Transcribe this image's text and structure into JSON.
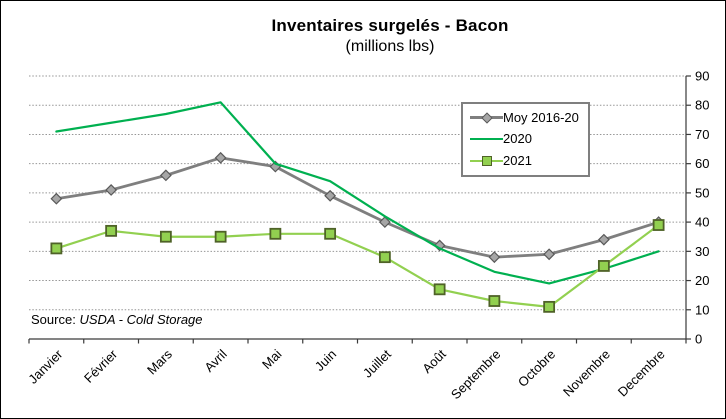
{
  "chart": {
    "title": "Inventaires surgelés - Bacon",
    "subtitle": "(millions lbs)",
    "source_label": "Source:",
    "source_value": "USDA - Cold Storage"
  },
  "chart_data": {
    "type": "line",
    "title": "Inventaires surgelés - Bacon",
    "subtitle": "(millions lbs)",
    "categories": [
      "Janvier",
      "Février",
      "Mars",
      "Avril",
      "Mai",
      "Juin",
      "Juillet",
      "Août",
      "Septembre",
      "Octobre",
      "Novembre",
      "Decembre"
    ],
    "series": [
      {
        "name": "Moy 2016-20",
        "color": "#7F7F7F",
        "stroke_width": 2.8,
        "marker": "diamond",
        "marker_fill": "#A6A6A6",
        "marker_stroke": "#595959",
        "values": [
          48,
          51,
          56,
          62,
          59,
          49,
          40,
          32,
          28,
          29,
          34,
          40
        ]
      },
      {
        "name": "2020",
        "color": "#00B050",
        "stroke_width": 2.2,
        "marker": "none",
        "marker_fill": "",
        "marker_stroke": "",
        "values": [
          71,
          74,
          77,
          81,
          60,
          54,
          42,
          31,
          23,
          19,
          24,
          30
        ]
      },
      {
        "name": "2021",
        "color": "#92D050",
        "stroke_width": 2.2,
        "marker": "square",
        "marker_fill": "#92D050",
        "marker_stroke": "#4F6228",
        "values": [
          31,
          37,
          35,
          35,
          36,
          36,
          28,
          17,
          13,
          11,
          25,
          39
        ]
      }
    ],
    "ylim": [
      0,
      90
    ],
    "ytick_step": 10,
    "yticks": [
      "0",
      "10",
      "20",
      "30",
      "40",
      "50",
      "60",
      "70",
      "80",
      "90"
    ],
    "y_axis_side": "right",
    "grid": "horizontal-dotted",
    "grid_color": "#969696",
    "axis_color": "#3a3a3a",
    "legend_position": "inside-top-right",
    "source": "Source: USDA - Cold Storage"
  }
}
